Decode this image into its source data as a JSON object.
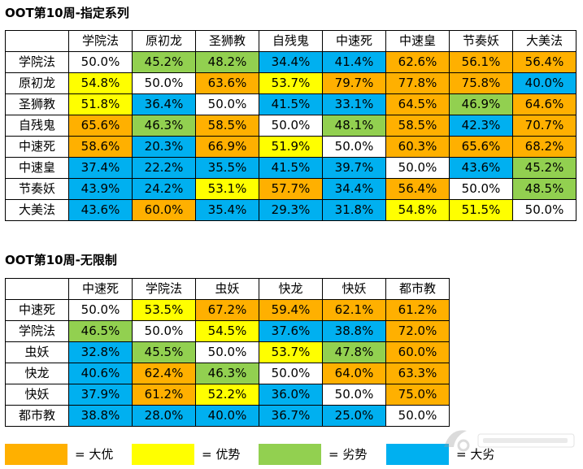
{
  "colors": {
    "big_adv": "#FFB000",
    "adv": "#FFFF00",
    "disadv": "#92D050",
    "big_disadv": "#00B0F0",
    "even": "#FFFFFF"
  },
  "table1": {
    "title": "OOT第10周-指定系列",
    "decks": [
      "学院法",
      "原初龙",
      "圣狮教",
      "自残鬼",
      "中速死",
      "中速皇",
      "节奏妖",
      "大美法"
    ],
    "rows": [
      [
        {
          "v": "50.0%",
          "c": "even"
        },
        {
          "v": "45.2%",
          "c": "disadv"
        },
        {
          "v": "48.2%",
          "c": "disadv"
        },
        {
          "v": "34.4%",
          "c": "big_disadv"
        },
        {
          "v": "41.4%",
          "c": "big_disadv"
        },
        {
          "v": "62.6%",
          "c": "big_adv"
        },
        {
          "v": "56.1%",
          "c": "big_adv"
        },
        {
          "v": "56.4%",
          "c": "big_adv"
        }
      ],
      [
        {
          "v": "54.8%",
          "c": "adv"
        },
        {
          "v": "50.0%",
          "c": "even"
        },
        {
          "v": "63.6%",
          "c": "big_adv"
        },
        {
          "v": "53.7%",
          "c": "adv"
        },
        {
          "v": "79.7%",
          "c": "big_adv"
        },
        {
          "v": "77.8%",
          "c": "big_adv"
        },
        {
          "v": "75.8%",
          "c": "big_adv"
        },
        {
          "v": "40.0%",
          "c": "big_disadv"
        }
      ],
      [
        {
          "v": "51.8%",
          "c": "adv"
        },
        {
          "v": "36.4%",
          "c": "big_disadv"
        },
        {
          "v": "50.0%",
          "c": "even"
        },
        {
          "v": "41.5%",
          "c": "big_disadv"
        },
        {
          "v": "33.1%",
          "c": "big_disadv"
        },
        {
          "v": "64.5%",
          "c": "big_adv"
        },
        {
          "v": "46.9%",
          "c": "disadv"
        },
        {
          "v": "64.6%",
          "c": "big_adv"
        }
      ],
      [
        {
          "v": "65.6%",
          "c": "big_adv"
        },
        {
          "v": "46.3%",
          "c": "disadv"
        },
        {
          "v": "58.5%",
          "c": "big_adv"
        },
        {
          "v": "50.0%",
          "c": "even"
        },
        {
          "v": "48.1%",
          "c": "disadv"
        },
        {
          "v": "58.5%",
          "c": "big_adv"
        },
        {
          "v": "42.3%",
          "c": "big_disadv"
        },
        {
          "v": "70.7%",
          "c": "big_adv"
        }
      ],
      [
        {
          "v": "58.6%",
          "c": "big_adv"
        },
        {
          "v": "20.3%",
          "c": "big_disadv"
        },
        {
          "v": "66.9%",
          "c": "big_adv"
        },
        {
          "v": "51.9%",
          "c": "adv"
        },
        {
          "v": "50.0%",
          "c": "even"
        },
        {
          "v": "60.3%",
          "c": "big_adv"
        },
        {
          "v": "65.6%",
          "c": "big_adv"
        },
        {
          "v": "68.2%",
          "c": "big_adv"
        }
      ],
      [
        {
          "v": "37.4%",
          "c": "big_disadv"
        },
        {
          "v": "22.2%",
          "c": "big_disadv"
        },
        {
          "v": "35.5%",
          "c": "big_disadv"
        },
        {
          "v": "41.5%",
          "c": "big_disadv"
        },
        {
          "v": "39.7%",
          "c": "big_disadv"
        },
        {
          "v": "50.0%",
          "c": "even"
        },
        {
          "v": "43.6%",
          "c": "big_disadv"
        },
        {
          "v": "45.2%",
          "c": "disadv"
        }
      ],
      [
        {
          "v": "43.9%",
          "c": "big_disadv"
        },
        {
          "v": "24.2%",
          "c": "big_disadv"
        },
        {
          "v": "53.1%",
          "c": "adv"
        },
        {
          "v": "57.7%",
          "c": "big_adv"
        },
        {
          "v": "34.4%",
          "c": "big_disadv"
        },
        {
          "v": "56.4%",
          "c": "big_adv"
        },
        {
          "v": "50.0%",
          "c": "even"
        },
        {
          "v": "48.5%",
          "c": "disadv"
        }
      ],
      [
        {
          "v": "43.6%",
          "c": "big_disadv"
        },
        {
          "v": "60.0%",
          "c": "big_adv"
        },
        {
          "v": "35.4%",
          "c": "big_disadv"
        },
        {
          "v": "29.3%",
          "c": "big_disadv"
        },
        {
          "v": "31.8%",
          "c": "big_disadv"
        },
        {
          "v": "54.8%",
          "c": "adv"
        },
        {
          "v": "51.5%",
          "c": "adv"
        },
        {
          "v": "50.0%",
          "c": "even"
        }
      ]
    ]
  },
  "table2": {
    "title": "OOT第10周-无限制",
    "decks": [
      "中速死",
      "学院法",
      "虫妖",
      "快龙",
      "快妖",
      "都市教"
    ],
    "rows": [
      [
        {
          "v": "50.0%",
          "c": "even"
        },
        {
          "v": "53.5%",
          "c": "adv"
        },
        {
          "v": "67.2%",
          "c": "big_adv"
        },
        {
          "v": "59.4%",
          "c": "big_adv"
        },
        {
          "v": "62.1%",
          "c": "big_adv"
        },
        {
          "v": "61.2%",
          "c": "big_adv"
        }
      ],
      [
        {
          "v": "46.5%",
          "c": "disadv"
        },
        {
          "v": "50.0%",
          "c": "even"
        },
        {
          "v": "54.5%",
          "c": "adv"
        },
        {
          "v": "37.6%",
          "c": "big_disadv"
        },
        {
          "v": "38.8%",
          "c": "big_disadv"
        },
        {
          "v": "72.0%",
          "c": "big_adv"
        }
      ],
      [
        {
          "v": "32.8%",
          "c": "big_disadv"
        },
        {
          "v": "45.5%",
          "c": "disadv"
        },
        {
          "v": "50.0%",
          "c": "even"
        },
        {
          "v": "53.7%",
          "c": "adv"
        },
        {
          "v": "47.8%",
          "c": "disadv"
        },
        {
          "v": "60.0%",
          "c": "big_adv"
        }
      ],
      [
        {
          "v": "40.6%",
          "c": "big_disadv"
        },
        {
          "v": "62.4%",
          "c": "big_adv"
        },
        {
          "v": "46.3%",
          "c": "disadv"
        },
        {
          "v": "50.0%",
          "c": "even"
        },
        {
          "v": "64.0%",
          "c": "big_adv"
        },
        {
          "v": "63.3%",
          "c": "big_adv"
        }
      ],
      [
        {
          "v": "37.9%",
          "c": "big_disadv"
        },
        {
          "v": "61.2%",
          "c": "big_adv"
        },
        {
          "v": "52.2%",
          "c": "adv"
        },
        {
          "v": "36.0%",
          "c": "big_disadv"
        },
        {
          "v": "50.0%",
          "c": "even"
        },
        {
          "v": "75.0%",
          "c": "big_adv"
        }
      ],
      [
        {
          "v": "38.8%",
          "c": "big_disadv"
        },
        {
          "v": "28.0%",
          "c": "big_disadv"
        },
        {
          "v": "40.0%",
          "c": "big_disadv"
        },
        {
          "v": "36.7%",
          "c": "big_disadv"
        },
        {
          "v": "25.0%",
          "c": "big_disadv"
        },
        {
          "v": "50.0%",
          "c": "even"
        }
      ]
    ]
  },
  "legend": [
    {
      "c": "big_adv",
      "label": "= 大优"
    },
    {
      "c": "adv",
      "label": "= 优势"
    },
    {
      "c": "disadv",
      "label": "= 劣势"
    },
    {
      "c": "big_disadv",
      "label": "= 大劣"
    }
  ]
}
